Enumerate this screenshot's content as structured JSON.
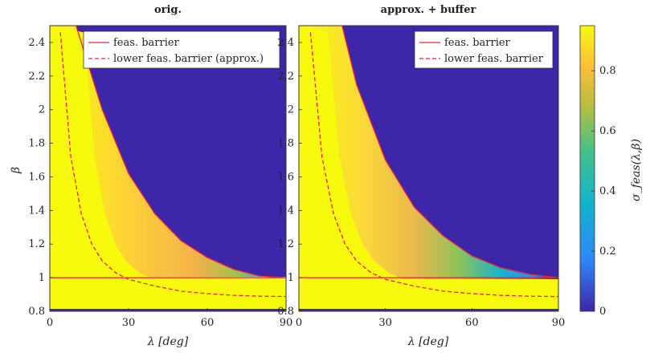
{
  "chart_data": [
    {
      "type": "heatmap",
      "title": "orig.",
      "xlabel": "λ [deg]",
      "ylabel": "β",
      "xlim": [
        0,
        90
      ],
      "ylim": [
        0.8,
        2.5
      ],
      "xticks": [
        "0",
        "30",
        "60",
        "90"
      ],
      "yticks": [
        "0.8",
        "1",
        "1.2",
        "1.4",
        "1.6",
        "1.8",
        "2",
        "2.2",
        "2.4"
      ],
      "legend": {
        "position": "top-right",
        "entries": [
          {
            "label": "feas. barrier",
            "style": "solid",
            "color": "#e8203a"
          },
          {
            "label": "lower feas. barrier (approx.)",
            "style": "dashed",
            "color": "#e8203a"
          }
        ]
      },
      "series": [
        {
          "name": "feas. barrier",
          "style": "solid",
          "x": [
            10,
            20,
            30,
            40,
            50,
            60,
            70,
            80,
            90
          ],
          "y": [
            2.5,
            2.0,
            1.62,
            1.38,
            1.22,
            1.12,
            1.05,
            1.01,
            1.0
          ]
        },
        {
          "name": "lower feas. barrier (approx.)",
          "style": "dashed",
          "x": [
            4,
            8,
            12,
            16,
            20,
            25,
            30,
            40,
            50,
            60,
            70,
            80,
            90
          ],
          "y": [
            2.46,
            1.72,
            1.38,
            1.2,
            1.1,
            1.03,
            0.99,
            0.95,
            0.92,
            0.905,
            0.895,
            0.89,
            0.888
          ]
        },
        {
          "name": "β = 1",
          "style": "solid",
          "x": [
            0,
            90
          ],
          "y": [
            1.0,
            1.0
          ]
        }
      ]
    },
    {
      "type": "heatmap",
      "title": "approx. + buffer",
      "xlabel": "λ [deg]",
      "ylabel": "",
      "xlim": [
        0,
        90
      ],
      "ylim": [
        0.8,
        2.5
      ],
      "xticks": [
        "0",
        "30",
        "60",
        "90"
      ],
      "yticks": [
        "0.8",
        "1",
        "1.2",
        "1.4",
        "1.6",
        "1.8",
        "2",
        "2.2",
        "2.4"
      ],
      "legend": {
        "position": "top-right",
        "entries": [
          {
            "label": "feas. barrier",
            "style": "solid",
            "color": "#e8203a"
          },
          {
            "label": "lower feas. barrier",
            "style": "dashed",
            "color": "#e8203a"
          }
        ]
      },
      "series": [
        {
          "name": "feas. barrier",
          "style": "solid",
          "x": [
            15,
            20,
            30,
            40,
            50,
            60,
            70,
            80,
            90
          ],
          "y": [
            2.5,
            2.15,
            1.7,
            1.42,
            1.25,
            1.13,
            1.06,
            1.02,
            1.0
          ]
        },
        {
          "name": "lower feas. barrier",
          "style": "dashed",
          "x": [
            4,
            8,
            12,
            16,
            20,
            25,
            30,
            40,
            50,
            60,
            70,
            80,
            90
          ],
          "y": [
            2.46,
            1.72,
            1.38,
            1.2,
            1.1,
            1.03,
            0.99,
            0.95,
            0.92,
            0.905,
            0.895,
            0.89,
            0.888
          ]
        },
        {
          "name": "β = 1",
          "style": "solid",
          "x": [
            0,
            90
          ],
          "y": [
            1.0,
            1.0
          ]
        }
      ]
    }
  ],
  "colorbar": {
    "label": "σ_feas(λ,β)",
    "range": [
      0,
      0.95
    ],
    "ticks": [
      "0",
      "0.2",
      "0.4",
      "0.6",
      "0.8"
    ],
    "colors": [
      "#3e26a8",
      "#2e87f7",
      "#12b4cc",
      "#43c08a",
      "#b8be42",
      "#fdbf39",
      "#f8fa0d"
    ]
  }
}
